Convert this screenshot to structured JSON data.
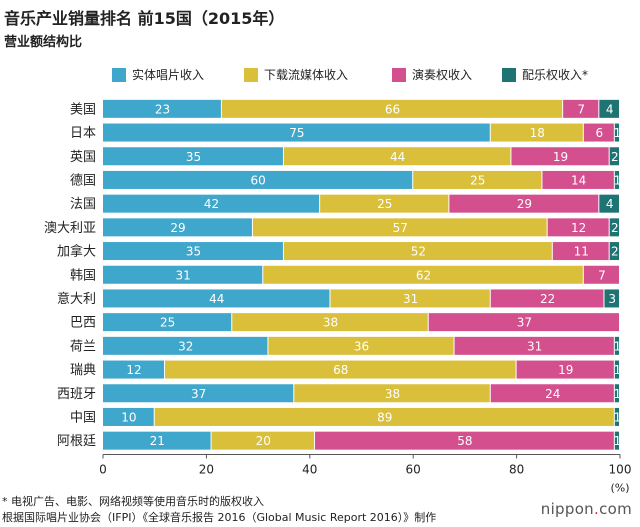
{
  "chart_data": {
    "type": "bar",
    "orientation": "horizontal",
    "stacked": true,
    "title": "音乐产业销量排名 前15国（2015年）",
    "subtitle": "营业额结构比",
    "categories": [
      "美国",
      "日本",
      "英国",
      "德国",
      "法国",
      "澳大利亚",
      "加拿大",
      "韩国",
      "意大利",
      "巴西",
      "荷兰",
      "瑞典",
      "西班牙",
      "中国",
      "阿根廷"
    ],
    "series": [
      {
        "name": "实体唱片收入",
        "color": "#3fa6cc",
        "values": [
          23,
          75,
          35,
          60,
          42,
          29,
          35,
          31,
          44,
          25,
          32,
          12,
          37,
          10,
          21
        ]
      },
      {
        "name": "下载流媒体收入",
        "color": "#d9bf3a",
        "values": [
          66,
          18,
          44,
          25,
          25,
          57,
          52,
          62,
          31,
          38,
          36,
          68,
          38,
          89,
          20
        ]
      },
      {
        "name": "演奏权收入",
        "color": "#d44f8e",
        "values": [
          7,
          6,
          19,
          14,
          29,
          12,
          11,
          7,
          22,
          37,
          31,
          19,
          24,
          0,
          58
        ]
      },
      {
        "name": "配乐权收入*",
        "color": "#1e7472",
        "values": [
          4,
          1,
          2,
          1,
          4,
          2,
          2,
          0,
          3,
          0,
          1,
          1,
          1,
          1,
          1
        ]
      }
    ],
    "xlim": [
      0,
      100
    ],
    "xticks": [
      0,
      20,
      40,
      60,
      80,
      100
    ],
    "xunit": "(%)",
    "grid": false,
    "legend": "top"
  },
  "notes": [
    "* 电视广告、电影、网络视频等使用音乐时的版权收入",
    "根据国际唱片业协会（IFPI）《全球音乐报告 2016（Global Music Report 2016）》制作"
  ],
  "logo": {
    "prefix": "nippon",
    "dot": ".",
    "suffix": "com"
  }
}
